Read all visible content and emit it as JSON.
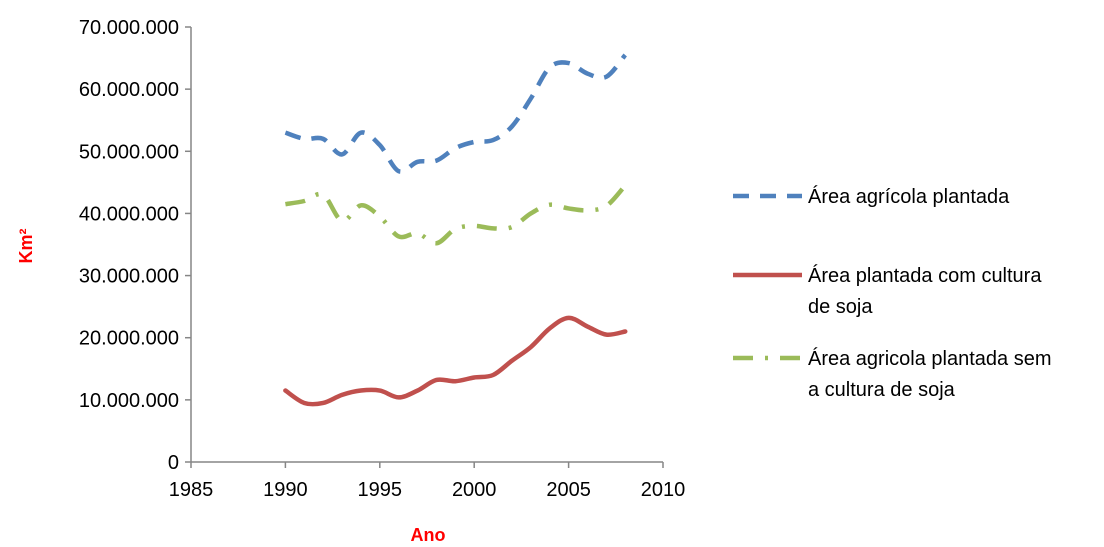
{
  "chart_data": {
    "type": "line",
    "xlabel": "Ano",
    "ylabel": "Km²",
    "xlim": [
      1985,
      2010
    ],
    "ylim": [
      0,
      70000000
    ],
    "xticks": [
      1985,
      1990,
      1995,
      2000,
      2005,
      2010
    ],
    "yticks": [
      0,
      10000000,
      20000000,
      30000000,
      40000000,
      50000000,
      60000000,
      70000000
    ],
    "xtick_labels": [
      "1985",
      "1990",
      "1995",
      "2000",
      "2005",
      "2010"
    ],
    "ytick_labels": [
      "0",
      "10.000.000",
      "20.000.000",
      "30.000.000",
      "40.000.000",
      "50.000.000",
      "60.000.000",
      "70.000.000"
    ],
    "axis_title_color": "#FF0000",
    "legend_position": "right",
    "grid": false,
    "series": [
      {
        "name": "Área agrícola plantada",
        "color": "#4F81BD",
        "style": "dash",
        "x": [
          1990,
          1991,
          1992,
          1993,
          1994,
          1995,
          1996,
          1997,
          1998,
          1999,
          2000,
          2001,
          2002,
          2003,
          2004,
          2005,
          2006,
          2007,
          2008
        ],
        "y": [
          53000000,
          52000000,
          52000000,
          49500000,
          53000000,
          51000000,
          46800000,
          48300000,
          48500000,
          50500000,
          51500000,
          51800000,
          54000000,
          58500000,
          63500000,
          64200000,
          62500000,
          62000000,
          65500000
        ]
      },
      {
        "name": "Área plantada com cultura de soja",
        "legend_lines": [
          "Área plantada com cultura",
          "de soja"
        ],
        "color": "#C0504D",
        "style": "solid",
        "x": [
          1990,
          1991,
          1992,
          1993,
          1994,
          1995,
          1996,
          1997,
          1998,
          1999,
          2000,
          2001,
          2002,
          2003,
          2004,
          2005,
          2006,
          2007,
          2008
        ],
        "y": [
          11500000,
          9500000,
          9500000,
          10800000,
          11500000,
          11500000,
          10400000,
          11500000,
          13200000,
          13000000,
          13600000,
          14000000,
          16300000,
          18500000,
          21500000,
          23200000,
          21800000,
          20500000,
          21000000
        ]
      },
      {
        "name": "Área agricola plantada sem a cultura de soja",
        "legend_lines": [
          "Área agricola plantada sem",
          "a cultura de soja"
        ],
        "color": "#9BBB59",
        "style": "dashdot",
        "x": [
          1990,
          1991,
          1992,
          1993,
          1994,
          1995,
          1996,
          1997,
          1998,
          1999,
          2000,
          2001,
          2002,
          2003,
          2004,
          2005,
          2006,
          2007,
          2008
        ],
        "y": [
          41500000,
          42000000,
          43000000,
          38800000,
          41300000,
          39500000,
          36300000,
          36800000,
          35200000,
          37500000,
          38000000,
          37600000,
          37800000,
          40000000,
          41400000,
          40800000,
          40500000,
          41200000,
          44500000
        ]
      }
    ]
  }
}
